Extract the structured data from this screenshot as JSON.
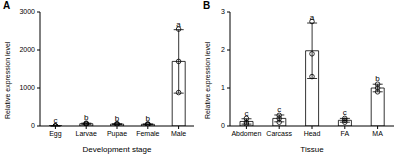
{
  "chart_data": [
    {
      "type": "bar",
      "title": "A",
      "x_label": "Development stage",
      "y_label": "Relative expression level",
      "categories": [
        "Egg",
        "Larvae",
        "Pupae",
        "Female",
        "Male"
      ],
      "values": [
        1,
        60,
        50,
        45,
        1700
      ],
      "error": [
        0.3,
        15,
        10,
        10,
        835
      ],
      "points": [
        [
          1,
          1,
          1
        ],
        [
          45,
          60,
          75
        ],
        [
          40,
          50,
          60
        ],
        [
          35,
          45,
          55
        ],
        [
          880,
          1700,
          2550
        ]
      ],
      "annotations": [
        "c",
        "b",
        "b",
        "b",
        "a"
      ],
      "color": "#ffffff",
      "ylim": [
        0,
        3000
      ],
      "yticks": [
        0,
        1000,
        2000,
        3000
      ],
      "grid": false
    },
    {
      "type": "bar",
      "title": "B",
      "x_label": "Tissue",
      "y_label": "Relative expression level",
      "categories": [
        "Abdomen",
        "Carcass",
        "Head",
        "FA",
        "MA"
      ],
      "values": [
        0.12,
        0.2,
        1.98,
        0.15,
        1.0
      ],
      "error": [
        0.07,
        0.09,
        0.73,
        0.05,
        0.1
      ],
      "points": [
        [
          0.05,
          0.1,
          0.2
        ],
        [
          0.1,
          0.2,
          0.28
        ],
        [
          1.3,
          1.9,
          2.75
        ],
        [
          0.1,
          0.15,
          0.2
        ],
        [
          0.9,
          1.0,
          1.1
        ]
      ],
      "annotations": [
        "c",
        "c",
        "a",
        "c",
        "b"
      ],
      "color": "#ffffff",
      "ylim": [
        0,
        3
      ],
      "yticks": [
        0,
        1,
        2,
        3
      ],
      "grid": false
    }
  ]
}
